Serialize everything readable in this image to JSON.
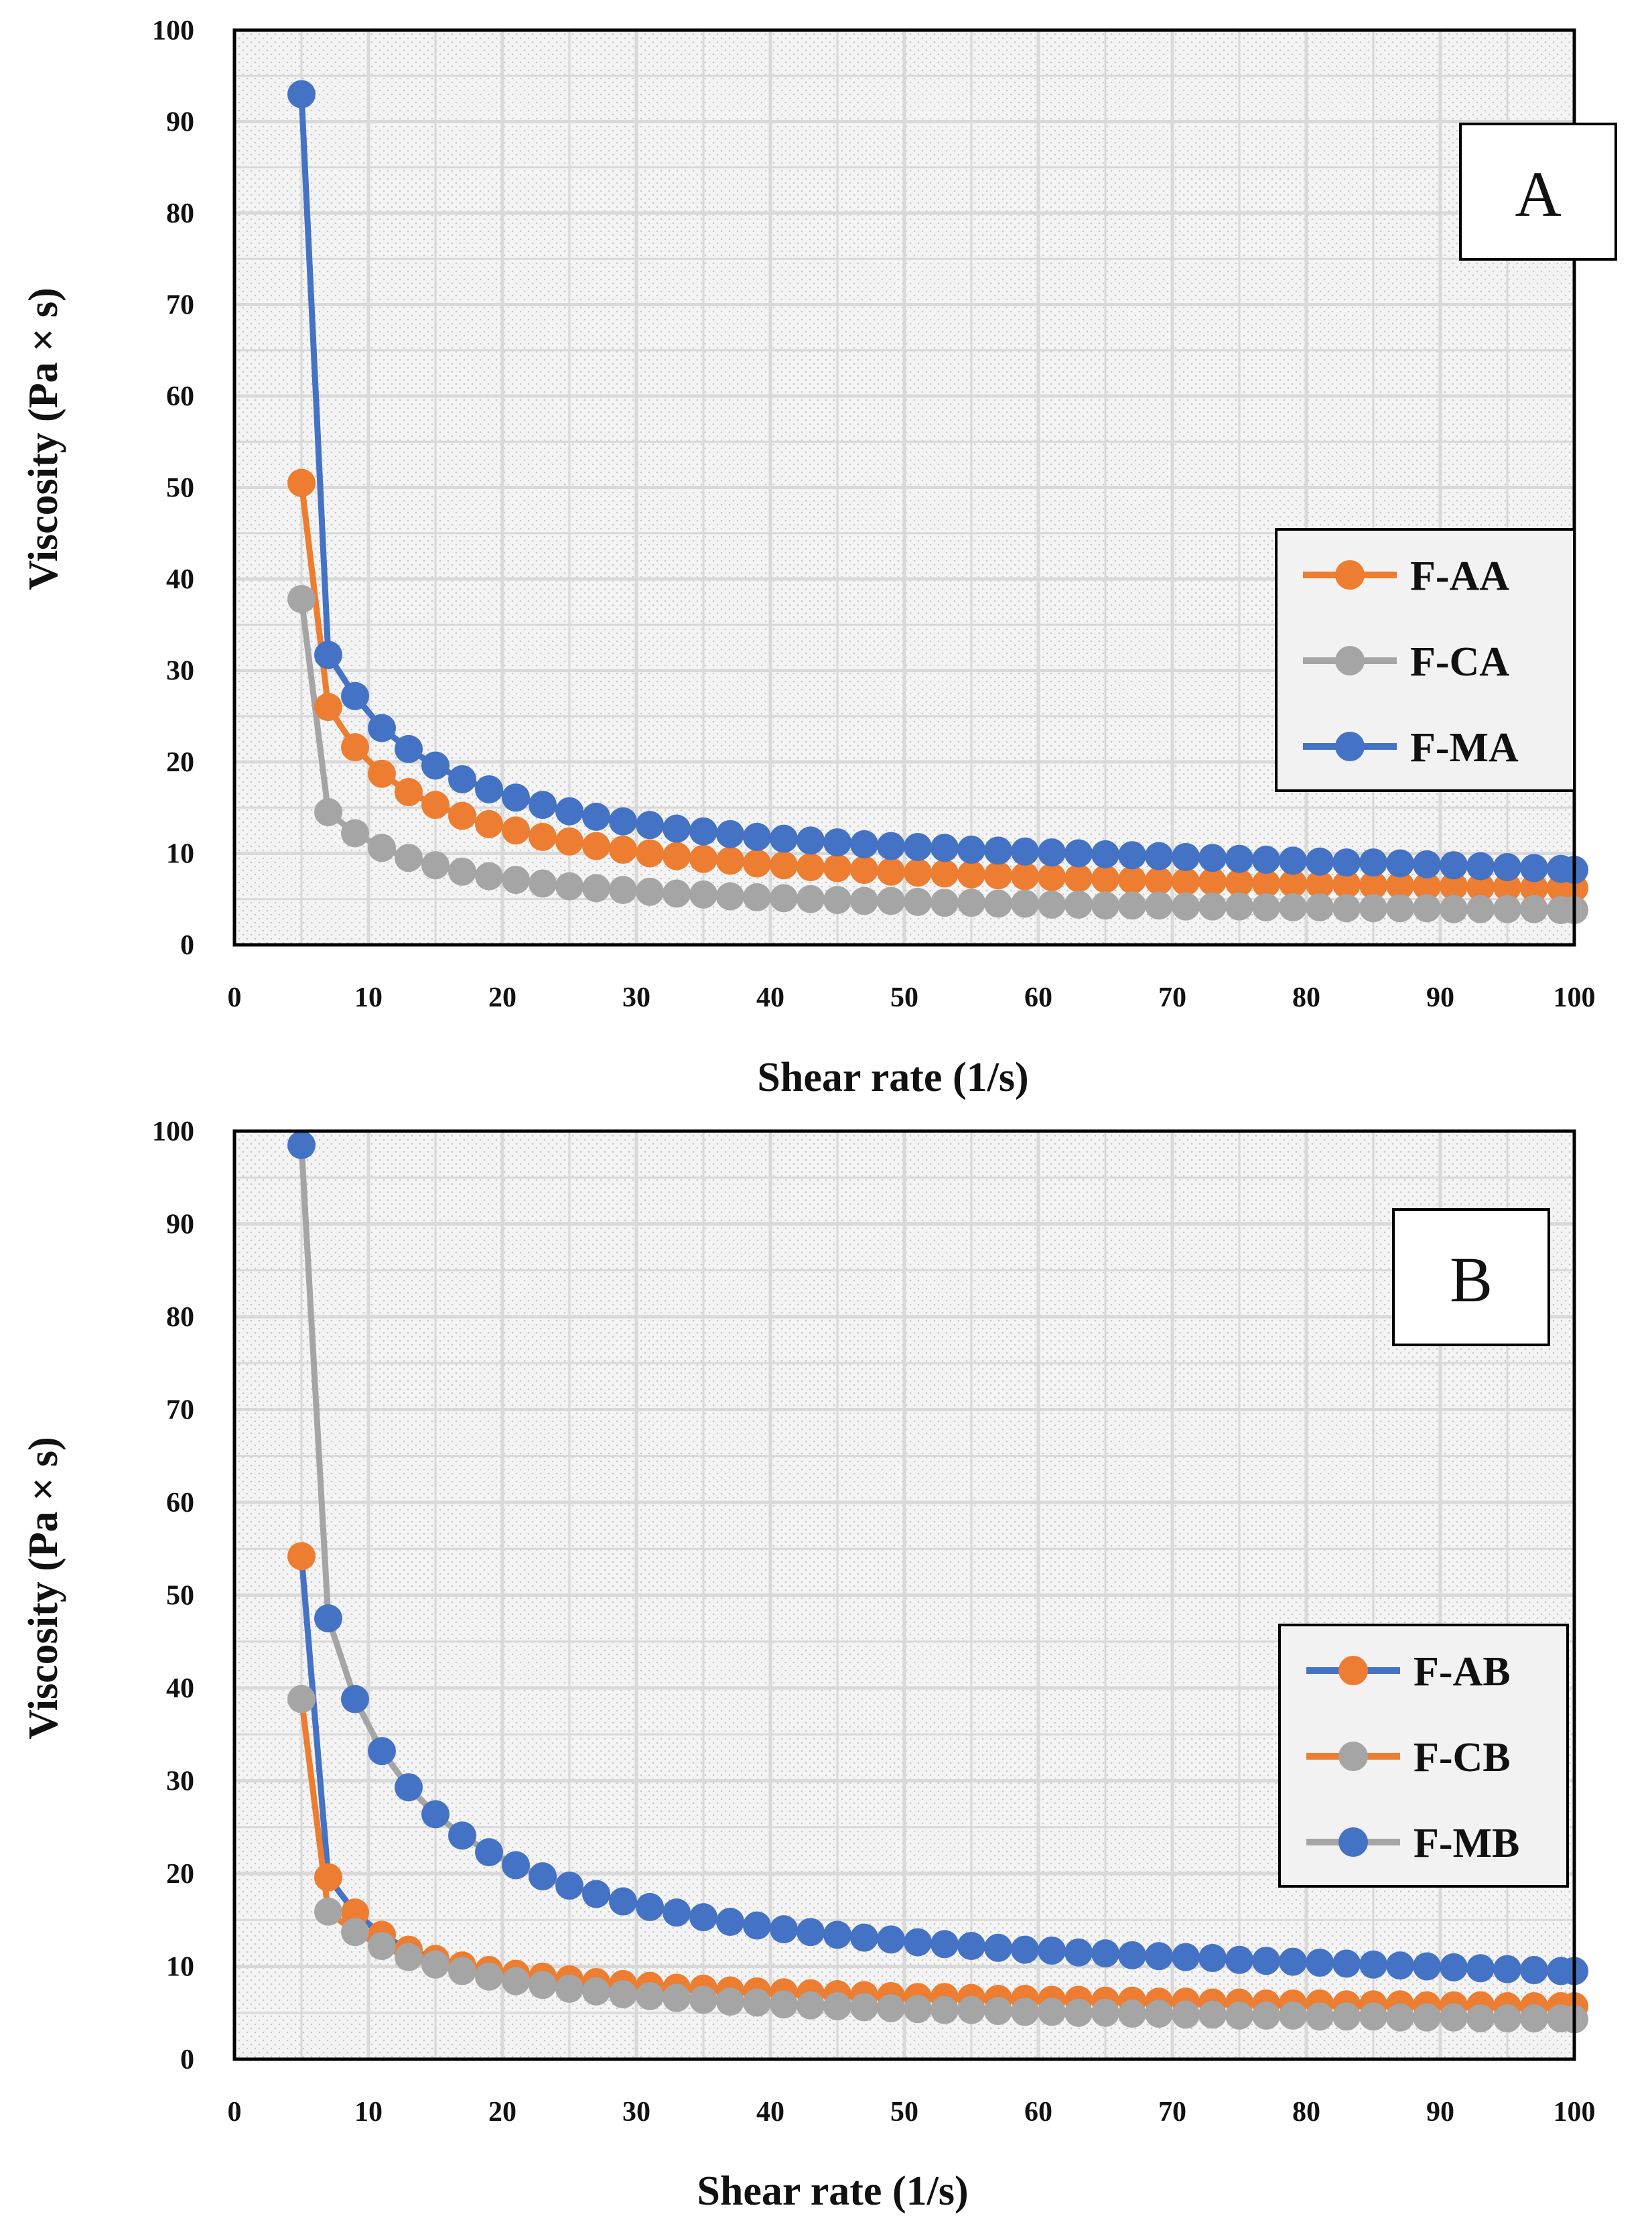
{
  "colors": {
    "blue": "#4472C4",
    "orange": "#ED7D31",
    "gray": "#A5A5A5",
    "grid": "#D9D9D9",
    "plot_bg": "#F4F4F4",
    "axis": "#000000"
  },
  "chart_data": [
    {
      "type": "line",
      "panel_label": "A",
      "xlabel": "Shear rate (1/s)",
      "ylabel": "Viscosity (Pa × s)",
      "xlim": [
        0,
        100
      ],
      "ylim": [
        0,
        100
      ],
      "xticks": [
        "0",
        "10",
        "20",
        "30",
        "40",
        "50",
        "60",
        "70",
        "80",
        "90",
        "100"
      ],
      "yticks": [
        "0",
        "10",
        "20",
        "30",
        "40",
        "50",
        "60",
        "70",
        "80",
        "90",
        "100"
      ],
      "grid": true,
      "legend_position": "right-middle",
      "x": [
        5,
        7,
        9,
        11,
        13,
        15,
        17,
        19,
        21,
        23,
        25,
        27,
        29,
        31,
        33,
        35,
        37,
        39,
        41,
        43,
        45,
        47,
        49,
        51,
        53,
        55,
        57,
        59,
        61,
        63,
        65,
        67,
        69,
        71,
        73,
        75,
        77,
        79,
        81,
        83,
        85,
        87,
        89,
        91,
        93,
        95,
        97,
        99,
        100
      ],
      "series": [
        {
          "name": "F-AA",
          "line_color": "#ED7D31",
          "marker_color": "#ED7D31",
          "values": [
            50.5,
            26.0,
            21.6,
            18.7,
            16.7,
            15.3,
            14.1,
            13.2,
            12.5,
            11.8,
            11.3,
            10.8,
            10.4,
            10.0,
            9.7,
            9.4,
            9.2,
            8.9,
            8.7,
            8.5,
            8.4,
            8.2,
            8.0,
            7.9,
            7.8,
            7.7,
            7.6,
            7.5,
            7.4,
            7.3,
            7.2,
            7.1,
            7.0,
            6.9,
            6.9,
            6.8,
            6.7,
            6.7,
            6.6,
            6.6,
            6.5,
            6.5,
            6.4,
            6.4,
            6.3,
            6.3,
            6.2,
            6.2,
            6.2
          ]
        },
        {
          "name": "F-CA",
          "line_color": "#A5A5A5",
          "marker_color": "#A5A5A5",
          "values": [
            37.8,
            14.5,
            12.2,
            10.6,
            9.5,
            8.7,
            8.0,
            7.5,
            7.1,
            6.7,
            6.4,
            6.2,
            6.0,
            5.8,
            5.6,
            5.5,
            5.3,
            5.2,
            5.1,
            5.0,
            4.9,
            4.8,
            4.8,
            4.7,
            4.6,
            4.6,
            4.5,
            4.5,
            4.4,
            4.4,
            4.3,
            4.3,
            4.3,
            4.2,
            4.2,
            4.2,
            4.1,
            4.1,
            4.1,
            4.0,
            4.0,
            4.0,
            4.0,
            3.9,
            3.9,
            3.9,
            3.9,
            3.8,
            3.8
          ]
        },
        {
          "name": "F-MA",
          "line_color": "#4472C4",
          "marker_color": "#4472C4",
          "values": [
            93.0,
            31.7,
            27.2,
            23.7,
            21.4,
            19.6,
            18.1,
            17.0,
            16.1,
            15.3,
            14.6,
            14.0,
            13.5,
            13.1,
            12.7,
            12.4,
            12.1,
            11.8,
            11.6,
            11.4,
            11.2,
            11.0,
            10.8,
            10.7,
            10.6,
            10.4,
            10.3,
            10.2,
            10.1,
            10.0,
            9.9,
            9.8,
            9.7,
            9.6,
            9.5,
            9.4,
            9.3,
            9.2,
            9.1,
            9.0,
            9.0,
            8.9,
            8.8,
            8.7,
            8.6,
            8.5,
            8.4,
            8.3,
            8.2
          ]
        }
      ]
    },
    {
      "type": "line",
      "panel_label": "B",
      "xlabel": "Shear rate (1/s)",
      "ylabel": "Viscosity (Pa × s)",
      "xlim": [
        0,
        100
      ],
      "ylim": [
        0,
        100
      ],
      "xticks": [
        "0",
        "10",
        "20",
        "30",
        "40",
        "50",
        "60",
        "70",
        "80",
        "90",
        "100"
      ],
      "yticks": [
        "0",
        "10",
        "20",
        "30",
        "40",
        "50",
        "60",
        "70",
        "80",
        "90",
        "100"
      ],
      "grid": true,
      "legend_position": "right-lower",
      "x": [
        5,
        7,
        9,
        11,
        13,
        15,
        17,
        19,
        21,
        23,
        25,
        27,
        29,
        31,
        33,
        35,
        37,
        39,
        41,
        43,
        45,
        47,
        49,
        51,
        53,
        55,
        57,
        59,
        61,
        63,
        65,
        67,
        69,
        71,
        73,
        75,
        77,
        79,
        81,
        83,
        85,
        87,
        89,
        91,
        93,
        95,
        97,
        99,
        100
      ],
      "series": [
        {
          "name": "F-AB",
          "line_color": "#4472C4",
          "marker_color": "#ED7D31",
          "values": [
            54.2,
            19.6,
            15.8,
            13.4,
            11.8,
            10.8,
            10.1,
            9.6,
            9.2,
            8.9,
            8.6,
            8.3,
            8.1,
            7.9,
            7.7,
            7.6,
            7.4,
            7.3,
            7.2,
            7.1,
            7.0,
            6.9,
            6.8,
            6.7,
            6.7,
            6.6,
            6.5,
            6.5,
            6.4,
            6.4,
            6.3,
            6.3,
            6.2,
            6.2,
            6.1,
            6.1,
            6.0,
            6.0,
            6.0,
            5.9,
            5.9,
            5.9,
            5.8,
            5.8,
            5.8,
            5.7,
            5.7,
            5.7,
            5.7
          ]
        },
        {
          "name": "F-CB",
          "line_color": "#ED7D31",
          "marker_color": "#A5A5A5",
          "values": [
            38.8,
            15.9,
            13.7,
            12.2,
            11.0,
            10.2,
            9.5,
            8.9,
            8.4,
            8.0,
            7.6,
            7.3,
            7.0,
            6.8,
            6.6,
            6.4,
            6.2,
            6.1,
            5.9,
            5.8,
            5.7,
            5.6,
            5.5,
            5.4,
            5.3,
            5.3,
            5.2,
            5.1,
            5.1,
            5.0,
            5.0,
            4.9,
            4.9,
            4.8,
            4.8,
            4.7,
            4.7,
            4.7,
            4.6,
            4.6,
            4.6,
            4.5,
            4.5,
            4.5,
            4.4,
            4.4,
            4.4,
            4.4,
            4.3
          ]
        },
        {
          "name": "F-MB",
          "line_color": "#A5A5A5",
          "marker_color": "#4472C4",
          "values": [
            98.5,
            47.5,
            38.8,
            33.2,
            29.3,
            26.4,
            24.1,
            22.3,
            20.9,
            19.7,
            18.7,
            17.8,
            17.0,
            16.4,
            15.8,
            15.3,
            14.8,
            14.4,
            14.0,
            13.7,
            13.4,
            13.1,
            12.9,
            12.6,
            12.4,
            12.2,
            12.0,
            11.8,
            11.7,
            11.5,
            11.4,
            11.2,
            11.1,
            11.0,
            10.9,
            10.7,
            10.6,
            10.5,
            10.4,
            10.3,
            10.2,
            10.1,
            10.0,
            9.9,
            9.8,
            9.7,
            9.6,
            9.5,
            9.5
          ]
        }
      ]
    }
  ]
}
